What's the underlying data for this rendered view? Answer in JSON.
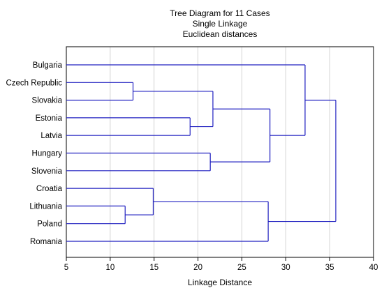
{
  "chart_data": {
    "type": "dendrogram",
    "title": [
      "Tree Diagram for 11 Cases",
      "Single Linkage",
      "Euclidean distances"
    ],
    "xlabel": "Linkage Distance",
    "xlim": [
      5,
      40
    ],
    "xticks": [
      5,
      10,
      15,
      20,
      25,
      30,
      35,
      40
    ],
    "grid": true,
    "line_color": "#2020c0",
    "leaves": [
      "Bulgaria",
      "Czech Republic",
      "Slovakia",
      "Estonia",
      "Latvia",
      "Hungary",
      "Slovenia",
      "Croatia",
      "Lithuania",
      "Poland",
      "Romania"
    ],
    "merges": [
      {
        "left": "Lithuania",
        "right": "Poland",
        "distance": 11.7,
        "id": "c1"
      },
      {
        "left": "Czech Republic",
        "right": "Slovakia",
        "distance": 12.6,
        "id": "c2"
      },
      {
        "left": "Croatia",
        "right": "c1",
        "distance": 14.9,
        "id": "c3"
      },
      {
        "left": "Estonia",
        "right": "Latvia",
        "distance": 19.1,
        "id": "c4"
      },
      {
        "left": "Hungary",
        "right": "Slovenia",
        "distance": 21.4,
        "id": "c5"
      },
      {
        "left": "c2",
        "right": "c4",
        "distance": 21.7,
        "id": "c6"
      },
      {
        "left": "c3",
        "right": "Romania",
        "distance": 28.0,
        "id": "c7"
      },
      {
        "left": "c6",
        "right": "c5",
        "distance": 28.2,
        "id": "c8"
      },
      {
        "left": "Bulgaria",
        "right": "c8",
        "distance": 32.2,
        "id": "c9"
      },
      {
        "left": "c9",
        "right": "c7",
        "distance": 35.7,
        "id": "c10"
      }
    ]
  }
}
